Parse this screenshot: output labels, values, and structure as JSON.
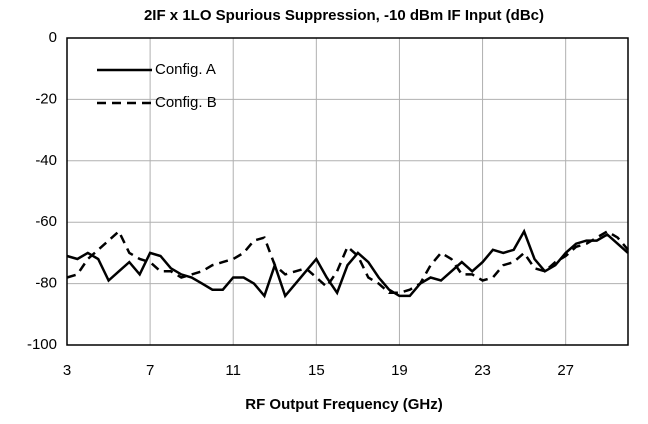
{
  "chart_data": {
    "type": "line",
    "title": "2IF x 1LO Spurious Suppression, -10 dBm IF Input (dBc)",
    "xlabel": "RF Output Frequency (GHz)",
    "x": [
      3,
      3.5,
      4,
      4.5,
      5,
      5.5,
      6,
      6.5,
      7,
      7.5,
      8,
      8.5,
      9,
      9.5,
      10,
      10.5,
      11,
      11.5,
      12,
      12.5,
      13,
      13.5,
      14,
      14.5,
      15,
      15.5,
      16,
      16.5,
      17,
      17.5,
      18,
      18.5,
      19,
      19.5,
      20,
      20.5,
      21,
      21.5,
      22,
      22.5,
      23,
      23.5,
      24,
      24.5,
      25,
      25.5,
      26,
      26.5,
      27,
      27.5,
      28,
      28.5,
      29,
      29.5,
      30
    ],
    "series": [
      {
        "name": "Config. A",
        "color": "#000000",
        "linestyle": "solid",
        "values": [
          -71,
          -72,
          -70,
          -72,
          -79,
          -76,
          -73,
          -77,
          -70,
          -71,
          -75,
          -77,
          -78,
          -80,
          -82,
          -82,
          -78,
          -78,
          -80,
          -84,
          -74,
          -84,
          -80,
          -76,
          -72,
          -78,
          -83,
          -74,
          -70,
          -73,
          -78,
          -82,
          -84,
          -84,
          -80,
          -78,
          -79,
          -76,
          -73,
          -76,
          -73,
          -69,
          -70,
          -69,
          -63,
          -72,
          -76,
          -74,
          -70,
          -67,
          -66,
          -66,
          -64,
          -67,
          -70
        ]
      },
      {
        "name": "Config. B",
        "color": "#000000",
        "linestyle": "dashed",
        "values": [
          -78,
          -77,
          -72,
          -69,
          -66,
          -63,
          -70,
          -72,
          -73,
          -76,
          -76,
          -78,
          -77,
          -76,
          -74,
          -73,
          -72,
          -70,
          -66,
          -65,
          -74,
          -77,
          -76,
          -75,
          -78,
          -81,
          -76,
          -68,
          -71,
          -78,
          -80,
          -83,
          -83,
          -82,
          -80,
          -74,
          -70,
          -72,
          -77,
          -77,
          -79,
          -78,
          -74,
          -73,
          -70,
          -75,
          -76,
          -73,
          -71,
          -68,
          -67,
          -65,
          -63,
          -65,
          -69
        ]
      }
    ],
    "xlim": [
      3,
      30
    ],
    "xticks": [
      3,
      7,
      11,
      15,
      19,
      23,
      27
    ],
    "ylim": [
      -100,
      0
    ],
    "yticks": [
      0,
      -20,
      -40,
      -60,
      -80,
      -100
    ],
    "grid": true,
    "legend": "upper left"
  }
}
